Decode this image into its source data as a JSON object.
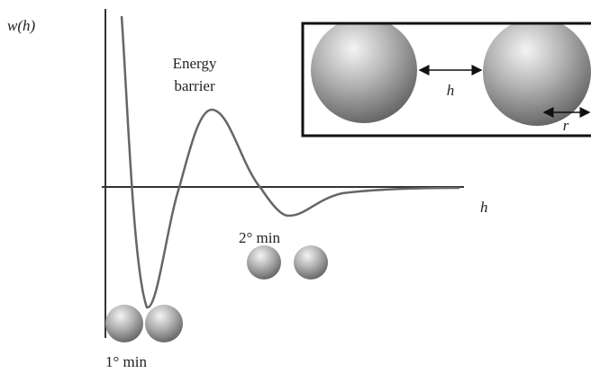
{
  "axes": {
    "y_label": "w(h)",
    "x_label": "h"
  },
  "annotations": {
    "energy_barrier": [
      "Energy",
      "barrier"
    ],
    "secondary_min": "2° min",
    "primary_min": "1° min"
  },
  "inset": {
    "separation_label": "h",
    "radius_label": "r"
  }
}
